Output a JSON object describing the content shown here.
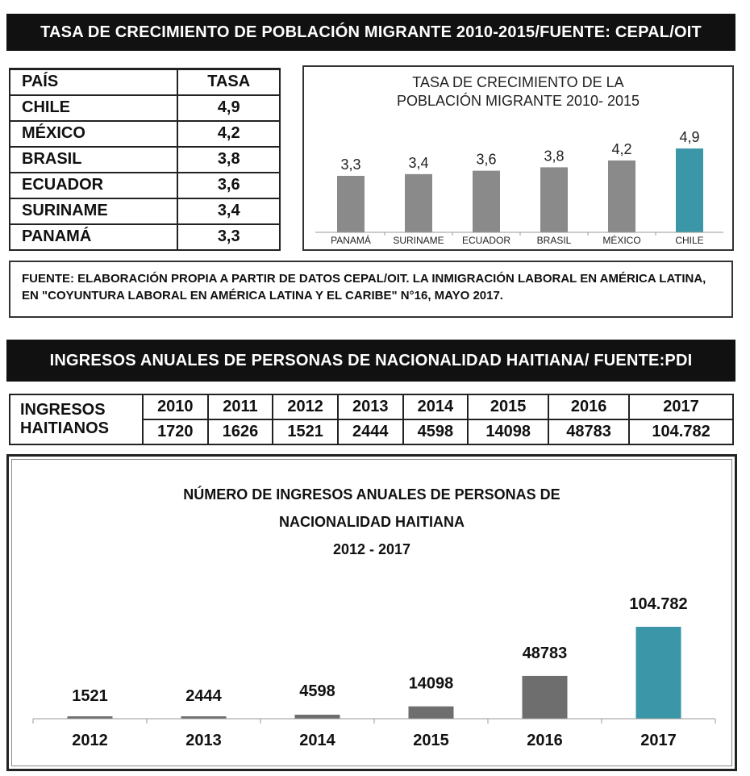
{
  "banner1": "TASA DE CRECIMIENTO DE POBLACIÓN MIGRANTE 2010-2015/FUENTE: CEPAL/OIT",
  "rate_table": {
    "headers": [
      "PAÍS",
      "TASA"
    ],
    "rows": [
      {
        "country": "CHILE",
        "rate": "4,9"
      },
      {
        "country": "MÉXICO",
        "rate": "4,2"
      },
      {
        "country": "BRASIL",
        "rate": "3,8"
      },
      {
        "country": "ECUADOR",
        "rate": "3,6"
      },
      {
        "country": "SURINAME",
        "rate": "3,4"
      },
      {
        "country": "PANAMÁ",
        "rate": "3,3"
      }
    ]
  },
  "source_text": "FUENTE: ELABORACIÓN PROPIA A PARTIR DE DATOS CEPAL/OIT. LA INMIGRACIÓN LABORAL EN AMÉRICA LATINA, EN \"COYUNTURA LABORAL EN AMÉRICA LATINA Y EL CARIBE\" N°16, MAYO 2017.",
  "banner2": "INGRESOS ANUALES DE PERSONAS DE NACIONALIDAD HAITIANA/ FUENTE:PDI",
  "haiti_table": {
    "label": "INGRESOS HAITIANOS",
    "years": [
      "2010",
      "2011",
      "2012",
      "2013",
      "2014",
      "2015",
      "2016",
      "2017"
    ],
    "values": [
      "1720",
      "1626",
      "1521",
      "2444",
      "4598",
      "14098",
      "48783",
      "104.782"
    ]
  },
  "colors": {
    "bar_gray": "#8a8a8a",
    "bar_dark": "#6e6e6e",
    "highlight": "#3b97a8",
    "banner_bg": "#111111"
  },
  "chart_data": [
    {
      "type": "bar",
      "title": "TASA DE CRECIMIENTO DE LA POBLACIÓN MIGRANTE 2010- 2015",
      "title_lines": [
        "TASA DE CRECIMIENTO DE LA",
        "POBLACIÓN MIGRANTE 2010- 2015"
      ],
      "categories": [
        "PANAMÁ",
        "SURINAME",
        "ECUADOR",
        "BRASIL",
        "MÉXICO",
        "CHILE"
      ],
      "values": [
        3.3,
        3.4,
        3.6,
        3.8,
        4.2,
        4.9
      ],
      "value_labels": [
        "3,3",
        "3,4",
        "3,6",
        "3,8",
        "4,2",
        "4,9"
      ],
      "highlight": "CHILE",
      "xlabel": "",
      "ylabel": "",
      "grid": false
    },
    {
      "type": "bar",
      "title": "NÚMERO DE INGRESOS ANUALES DE PERSONAS DE NACIONALIDAD HAITIANA 2012 - 2017",
      "title_lines": [
        "NÚMERO DE INGRESOS ANUALES DE PERSONAS DE",
        "NACIONALIDAD HAITIANA",
        "2012 - 2017"
      ],
      "categories": [
        "2012",
        "2013",
        "2014",
        "2015",
        "2016",
        "2017"
      ],
      "values": [
        1521,
        2444,
        4598,
        14098,
        48783,
        104782
      ],
      "value_labels": [
        "1521",
        "2444",
        "4598",
        "14098",
        "48783",
        "104.782"
      ],
      "highlight": "2017",
      "xlabel": "",
      "ylabel": "",
      "grid": false
    }
  ]
}
